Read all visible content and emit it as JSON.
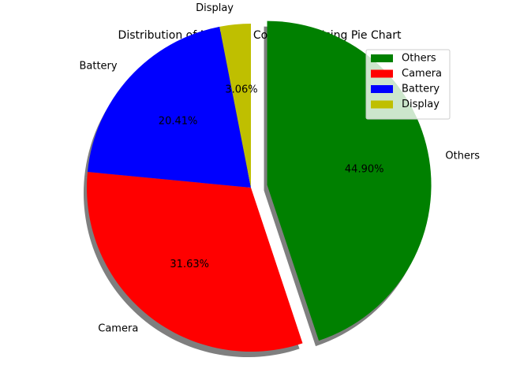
{
  "chart_data": {
    "type": "pie",
    "title": "Distribution of Negative Comments Using Pie Chart",
    "slices": [
      {
        "label": "Others",
        "value": 44.9,
        "pct_label": "44.90%",
        "color": "#008000",
        "explode": true
      },
      {
        "label": "Camera",
        "value": 31.63,
        "pct_label": "31.63%",
        "color": "#ff0000",
        "explode": false
      },
      {
        "label": "Battery",
        "value": 20.41,
        "pct_label": "20.41%",
        "color": "#0000ff",
        "explode": false
      },
      {
        "label": "Display",
        "value": 3.06,
        "pct_label": "3.06%",
        "color": "#bfbf00",
        "explode": false
      }
    ],
    "start_angle_deg": 90,
    "direction": "clockwise",
    "shadow": true,
    "legend": {
      "placement": "top-right",
      "entries": [
        "Others",
        "Camera",
        "Battery",
        "Display"
      ]
    }
  }
}
